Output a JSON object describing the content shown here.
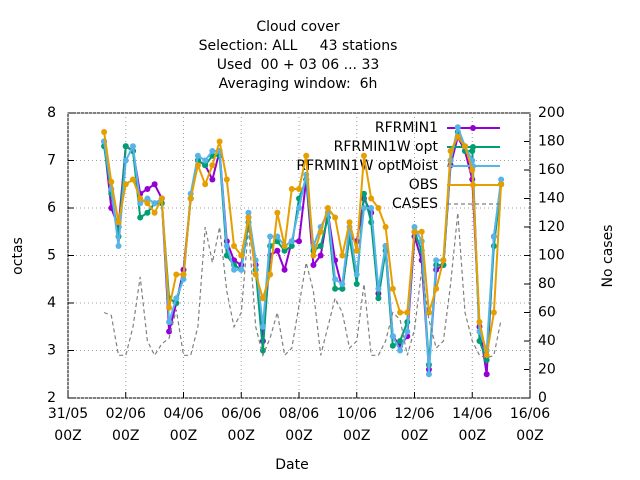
{
  "chart_data": {
    "type": "line",
    "title": [
      "Cloud cover",
      "Selection: ALL     43 stations",
      "Used  00 + 03 06 ... 33",
      "Averaging window:  6h"
    ],
    "xlabel": "Date",
    "ylabel": "octas",
    "y2label": "No cases",
    "xlim": [
      "31/05 00Z",
      "16/06 00Z"
    ],
    "xticks": [
      {
        "value": "31/05 00Z",
        "label": [
          "31/05",
          "00Z"
        ]
      },
      {
        "value": "02/06 00Z",
        "label": [
          "02/06",
          "00Z"
        ]
      },
      {
        "value": "04/06 00Z",
        "label": [
          "04/06",
          "00Z"
        ]
      },
      {
        "value": "06/06 00Z",
        "label": [
          "06/06",
          "00Z"
        ]
      },
      {
        "value": "08/06 00Z",
        "label": [
          "08/06",
          "00Z"
        ]
      },
      {
        "value": "10/06 00Z",
        "label": [
          "10/06",
          "00Z"
        ]
      },
      {
        "value": "12/06 00Z",
        "label": [
          "12/06",
          "00Z"
        ]
      },
      {
        "value": "14/06 00Z",
        "label": [
          "14/06",
          "00Z"
        ]
      },
      {
        "value": "16/06 00Z",
        "label": [
          "16/06",
          "00Z"
        ]
      }
    ],
    "ylim": [
      2,
      8
    ],
    "yticks": [
      2,
      3,
      4,
      5,
      6,
      7,
      8
    ],
    "y2lim": [
      0,
      200
    ],
    "y2ticks": [
      0,
      20,
      40,
      60,
      80,
      100,
      120,
      140,
      160,
      180,
      200
    ],
    "grid": true,
    "legend": "top-right",
    "x": [
      "01/06 06Z",
      "01/06 12Z",
      "01/06 18Z",
      "02/06 00Z",
      "02/06 06Z",
      "02/06 12Z",
      "02/06 18Z",
      "03/06 00Z",
      "03/06 06Z",
      "03/06 12Z",
      "03/06 18Z",
      "04/06 00Z",
      "04/06 06Z",
      "04/06 12Z",
      "04/06 18Z",
      "05/06 00Z",
      "05/06 06Z",
      "05/06 12Z",
      "05/06 18Z",
      "06/06 00Z",
      "06/06 06Z",
      "06/06 12Z",
      "06/06 18Z",
      "07/06 00Z",
      "07/06 06Z",
      "07/06 12Z",
      "07/06 18Z",
      "08/06 00Z",
      "08/06 06Z",
      "08/06 12Z",
      "08/06 18Z",
      "09/06 00Z",
      "09/06 06Z",
      "09/06 12Z",
      "09/06 18Z",
      "10/06 00Z",
      "10/06 06Z",
      "10/06 12Z",
      "10/06 18Z",
      "11/06 00Z",
      "11/06 06Z",
      "11/06 12Z",
      "11/06 18Z",
      "12/06 00Z",
      "12/06 06Z",
      "12/06 12Z",
      "12/06 18Z",
      "13/06 00Z",
      "13/06 06Z",
      "13/06 12Z",
      "13/06 18Z",
      "14/06 00Z",
      "14/06 06Z",
      "14/06 12Z",
      "14/06 18Z",
      "15/06 00Z"
    ],
    "series": [
      {
        "name": "RFRMIN1",
        "color": "#9400d3",
        "marker": true,
        "values": [
          7.4,
          6.0,
          5.6,
          7.3,
          7.2,
          6.3,
          6.4,
          6.5,
          6.2,
          3.4,
          4.0,
          4.7,
          6.2,
          7.0,
          6.9,
          6.6,
          7.2,
          5.3,
          4.9,
          4.8,
          5.8,
          4.8,
          3.2,
          5.0,
          5.1,
          4.7,
          5.3,
          5.3,
          6.6,
          4.8,
          5.0,
          5.9,
          4.9,
          4.3,
          5.4,
          5.3,
          6.2,
          5.9,
          4.2,
          5.2,
          3.3,
          3.1,
          3.3,
          5.4,
          4.9,
          2.6,
          4.7,
          4.8,
          6.9,
          7.5,
          7.2,
          6.6,
          3.5,
          2.5,
          5.4,
          6.5
        ]
      },
      {
        "name": "RFRMIN1W opt",
        "color": "#009e73",
        "marker": true,
        "values": [
          7.3,
          6.3,
          5.4,
          7.3,
          7.2,
          5.8,
          5.9,
          6.1,
          6.1,
          4.1,
          4.0,
          4.6,
          6.2,
          7.0,
          6.9,
          7.1,
          7.1,
          5.0,
          4.8,
          4.7,
          5.7,
          4.7,
          3.0,
          5.2,
          5.3,
          5.1,
          5.2,
          6.2,
          6.6,
          5.1,
          5.2,
          5.8,
          4.3,
          4.3,
          5.4,
          4.4,
          6.3,
          5.7,
          4.1,
          5.1,
          3.1,
          3.2,
          3.6,
          5.5,
          5.1,
          2.7,
          4.8,
          4.8,
          7.0,
          7.6,
          7.2,
          7.2,
          3.2,
          2.8,
          5.2,
          6.5
        ]
      },
      {
        "name": "RFRMIN1W optMoist",
        "color": "#56b4e9",
        "marker": true,
        "values": [
          7.4,
          6.4,
          5.2,
          7.0,
          7.3,
          6.1,
          6.2,
          6.1,
          6.2,
          3.6,
          4.1,
          4.5,
          6.3,
          7.1,
          7.0,
          7.2,
          7.2,
          5.2,
          4.7,
          4.7,
          5.9,
          4.9,
          3.5,
          5.4,
          5.4,
          5.2,
          5.3,
          6.0,
          6.7,
          5.2,
          5.6,
          5.9,
          4.5,
          4.4,
          5.6,
          4.6,
          6.0,
          6.0,
          4.3,
          5.2,
          3.3,
          3.0,
          3.4,
          5.6,
          5.3,
          2.5,
          4.9,
          4.9,
          7.0,
          7.7,
          7.3,
          7.0,
          3.4,
          3.0,
          5.4,
          6.6
        ]
      },
      {
        "name": "OBS",
        "color": "#e69f00",
        "marker": true,
        "values": [
          7.6,
          6.55,
          5.7,
          6.5,
          6.6,
          6.2,
          6.1,
          5.9,
          6.2,
          3.9,
          4.6,
          4.6,
          6.2,
          6.9,
          6.5,
          6.9,
          7.4,
          6.6,
          5.2,
          5.0,
          5.8,
          4.6,
          4.1,
          4.6,
          5.9,
          5.2,
          6.4,
          6.4,
          7.1,
          5.0,
          5.5,
          6.0,
          5.8,
          5.0,
          5.7,
          5.1,
          7.1,
          6.2,
          6.0,
          5.6,
          4.3,
          3.8,
          3.8,
          5.5,
          5.5,
          3.8,
          4.3,
          4.9,
          7.2,
          7.5,
          7.3,
          6.8,
          3.6,
          2.9,
          3.8,
          6.5
        ]
      },
      {
        "name": "CASES",
        "color": "#808080",
        "axis": "y2",
        "dashed": true,
        "marker": false,
        "values": [
          60,
          58,
          30,
          30,
          50,
          85,
          40,
          30,
          38,
          42,
          62,
          30,
          30,
          50,
          120,
          95,
          120,
          75,
          50,
          60,
          120,
          50,
          30,
          42,
          60,
          30,
          35,
          65,
          95,
          75,
          30,
          50,
          70,
          60,
          35,
          40,
          80,
          30,
          30,
          40,
          60,
          55,
          30,
          48,
          90,
          55,
          35,
          40,
          80,
          130,
          60,
          40,
          30,
          28,
          30,
          55
        ]
      }
    ]
  }
}
